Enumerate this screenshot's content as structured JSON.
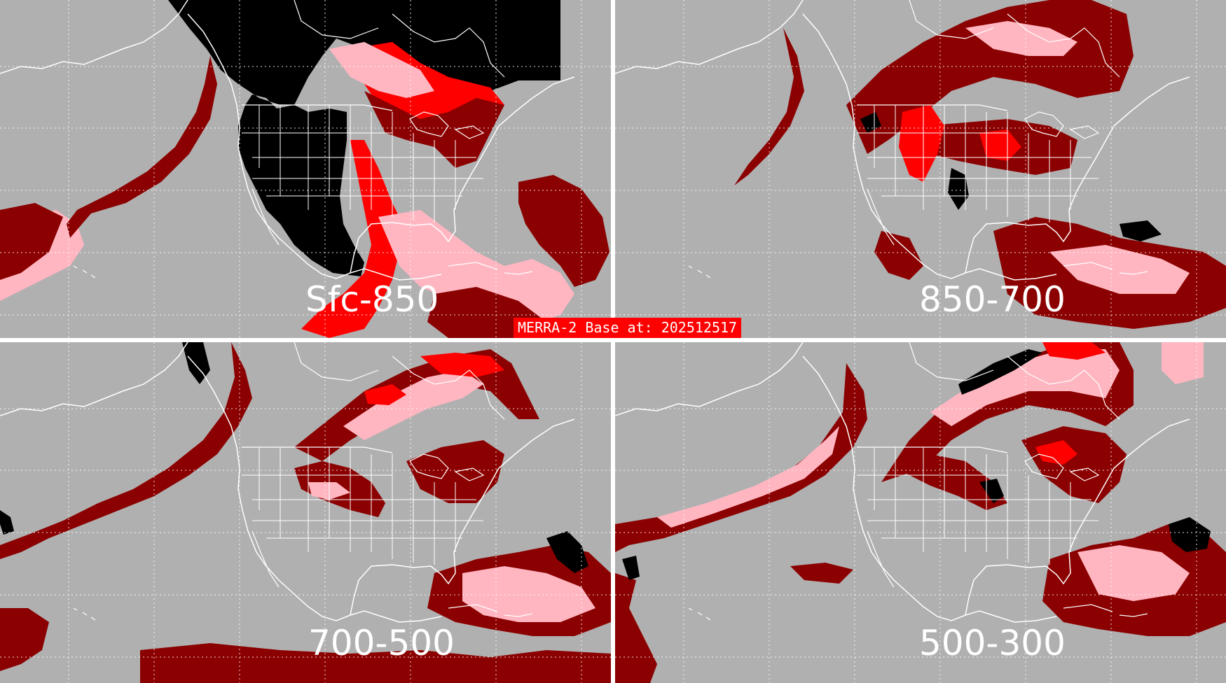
{
  "title": "MERRA-2 Base at: 202512517",
  "colors": {
    "background": "#b0b0b0",
    "coast": "#ffffff",
    "darkred": "#8b0000",
    "red": "#ff0000",
    "pink": "#ffb6c1",
    "black": "#000000"
  },
  "panels": [
    {
      "label": "Sfc-850"
    },
    {
      "label": "850-700"
    },
    {
      "label": "700-500"
    },
    {
      "label": "500-300"
    }
  ]
}
